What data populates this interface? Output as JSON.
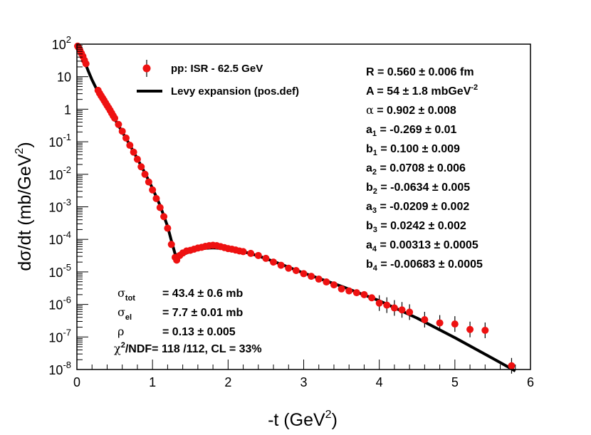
{
  "chart_data": {
    "type": "scatter",
    "xlabel": "-t (GeV",
    "xlabel_sup": "2",
    "xlabel_close": ")",
    "ylabel": "dσ/dt (mb/GeV",
    "ylabel_sup": "2",
    "ylabel_close": ")",
    "xlim": [
      0,
      6
    ],
    "ylim_log10": [
      -8,
      2
    ],
    "x_ticks": [
      "0",
      "1",
      "2",
      "3",
      "4",
      "5",
      "6"
    ],
    "y_ticks": [
      {
        "base": "10",
        "exp": "-8"
      },
      {
        "base": "10",
        "exp": "-7"
      },
      {
        "base": "10",
        "exp": "-6"
      },
      {
        "base": "10",
        "exp": "-5"
      },
      {
        "base": "10",
        "exp": "-4"
      },
      {
        "base": "10",
        "exp": "-3"
      },
      {
        "base": "10",
        "exp": "-2"
      },
      {
        "base": "10",
        "exp": "-1"
      },
      {
        "base": "1",
        "exp": ""
      },
      {
        "base": "10",
        "exp": ""
      },
      {
        "base": "10",
        "exp": "2"
      }
    ],
    "legend": {
      "data_label": "pp: ISR - 62.5 GeV",
      "fit_label": "Levy expansion (pos.def)"
    },
    "data_color": "#ee1111",
    "fit_color": "#000000",
    "series": [
      {
        "name": "pp: ISR - 62.5 GeV",
        "points": [
          [
            0.01,
            87
          ],
          [
            0.02,
            80
          ],
          [
            0.04,
            65
          ],
          [
            0.06,
            52
          ],
          [
            0.08,
            42
          ],
          [
            0.1,
            32
          ],
          [
            0.12,
            25
          ],
          [
            0.28,
            3.8
          ],
          [
            0.3,
            3.1
          ],
          [
            0.32,
            2.6
          ],
          [
            0.34,
            2.2
          ],
          [
            0.36,
            1.85
          ],
          [
            0.38,
            1.55
          ],
          [
            0.4,
            1.3
          ],
          [
            0.42,
            1.1
          ],
          [
            0.44,
            0.92
          ],
          [
            0.46,
            0.76
          ],
          [
            0.48,
            0.63
          ],
          [
            0.5,
            0.53
          ],
          [
            0.55,
            0.34
          ],
          [
            0.6,
            0.21
          ],
          [
            0.65,
            0.13
          ],
          [
            0.7,
            0.078
          ],
          [
            0.75,
            0.048
          ],
          [
            0.8,
            0.029
          ],
          [
            0.85,
            0.017
          ],
          [
            0.9,
            0.01
          ],
          [
            0.95,
            0.0058
          ],
          [
            1.0,
            0.0033
          ],
          [
            1.05,
            0.0018
          ],
          [
            1.1,
            0.00095
          ],
          [
            1.15,
            0.0005
          ],
          [
            1.2,
            0.00022
          ],
          [
            1.25,
            7e-05
          ],
          [
            1.3,
            2.8e-05
          ],
          [
            1.32,
            2.3e-05
          ],
          [
            1.36,
            3.2e-05
          ],
          [
            1.4,
            3.8e-05
          ],
          [
            1.45,
            4.4e-05
          ],
          [
            1.5,
            4.6e-05
          ],
          [
            1.55,
            5e-05
          ],
          [
            1.6,
            5.4e-05
          ],
          [
            1.65,
            5.7e-05
          ],
          [
            1.7,
            6.1e-05
          ],
          [
            1.75,
            6.4e-05
          ],
          [
            1.8,
            6.6e-05
          ],
          [
            1.85,
            6.4e-05
          ],
          [
            1.9,
            6e-05
          ],
          [
            1.95,
            5.6e-05
          ],
          [
            2.0,
            5.2e-05
          ],
          [
            2.05,
            5e-05
          ],
          [
            2.1,
            4.7e-05
          ],
          [
            2.15,
            4.4e-05
          ],
          [
            2.2,
            4.2e-05
          ],
          [
            2.3,
            3.7e-05
          ],
          [
            2.4,
            3.2e-05
          ],
          [
            2.5,
            2.6e-05
          ],
          [
            2.6,
            2e-05
          ],
          [
            2.7,
            1.6e-05
          ],
          [
            2.8,
            1.3e-05
          ],
          [
            2.9,
            1.1e-05
          ],
          [
            3.0,
            8.8e-06
          ],
          [
            3.1,
            7.3e-06
          ],
          [
            3.2,
            6e-06
          ],
          [
            3.3,
            4.9e-06
          ],
          [
            3.4,
            4e-06
          ],
          [
            3.5,
            3e-06
          ],
          [
            3.6,
            2.6e-06
          ],
          [
            3.7,
            2.3e-06
          ],
          [
            3.8,
            2e-06
          ],
          [
            3.9,
            1.6e-06
          ],
          [
            4.0,
            1.1e-06
          ],
          [
            4.1,
            9.5e-07
          ],
          [
            4.2,
            7.8e-07
          ],
          [
            4.3,
            6.8e-07
          ],
          [
            4.4,
            5.8e-07
          ],
          [
            4.6,
            3.4e-07
          ],
          [
            4.8,
            2.7e-07
          ],
          [
            5.0,
            2.5e-07
          ],
          [
            5.2,
            1.7e-07
          ],
          [
            5.4,
            1.6e-07
          ],
          [
            5.75,
            1.3e-08
          ]
        ]
      }
    ],
    "fit_curve": {
      "name": "Levy expansion (pos.def)",
      "x": [
        0.0,
        0.05,
        0.1,
        0.15,
        0.2,
        0.3,
        0.4,
        0.5,
        0.6,
        0.7,
        0.8,
        0.9,
        1.0,
        1.1,
        1.2,
        1.25,
        1.3,
        1.35,
        1.4,
        1.5,
        1.6,
        1.7,
        1.8,
        1.9,
        2.0,
        2.2,
        2.4,
        2.6,
        2.8,
        3.0,
        3.5,
        4.0,
        4.5,
        5.0,
        5.5,
        5.8
      ],
      "y": [
        90,
        55,
        30,
        15,
        8,
        2.7,
        1.2,
        0.5,
        0.2,
        0.08,
        0.03,
        0.011,
        0.0037,
        0.0011,
        0.00025,
        9e-05,
        3.5e-05,
        3e-05,
        3.4e-05,
        4.2e-05,
        4.9e-05,
        5.3e-05,
        5.5e-05,
        5.3e-05,
        5e-05,
        4.2e-05,
        3.1e-05,
        2.1e-05,
        1.4e-05,
        9.2e-06,
        3.6e-06,
        1.3e-06,
        3.8e-07,
        9.5e-08,
        2.2e-08,
        9e-09
      ]
    },
    "parameters": [
      {
        "name": "R",
        "sub": "",
        "sup": "",
        "value": " = 0.560",
        "err": "± 0.006 fm"
      },
      {
        "name": "A",
        "sub": "",
        "sup": "",
        "value": " = 54",
        "err": "± 1.8 mbGeV",
        "err_sup": "-2"
      },
      {
        "name": "α",
        "sub": "",
        "sup": "",
        "value": " = 0.902",
        "err": "± 0.008"
      },
      {
        "name": "a",
        "sub": "1",
        "sup": "",
        "value": " = -0.269",
        "err": "± 0.01"
      },
      {
        "name": "b",
        "sub": "1",
        "sup": "",
        "value": " = 0.100",
        "err": "± 0.009"
      },
      {
        "name": "a",
        "sub": "2",
        "sup": "",
        "value": " = 0.0708",
        "err": "± 0.006"
      },
      {
        "name": "b",
        "sub": "2",
        "sup": "",
        "value": " = -0.0634",
        "err": "± 0.005"
      },
      {
        "name": "a",
        "sub": "3",
        "sup": "",
        "value": " = -0.0209",
        "err": "± 0.002"
      },
      {
        "name": "b",
        "sub": "3",
        "sup": "",
        "value": " = 0.0242",
        "err": "± 0.002"
      },
      {
        "name": "a",
        "sub": "4",
        "sup": "",
        "value": " = 0.00313",
        "err": "± 0.0005"
      },
      {
        "name": "b",
        "sub": "4",
        "sup": "",
        "value": " = -0.00683",
        "err": "± 0.0005"
      }
    ],
    "stats": [
      {
        "name": "σ",
        "sub": "tot",
        "value": "= 43.4",
        "err": "± 0.6 mb"
      },
      {
        "name": "σ",
        "sub": "el",
        "value": "= 7.7",
        "err": "± 0.01 mb"
      },
      {
        "name": "ρ",
        "sub": "",
        "value": "= 0.13",
        "err": "± 0.005"
      }
    ],
    "chi2": {
      "prefix": "χ",
      "sup": "2",
      "rest": "/NDF",
      "value": "= 118 /112,  CL = 33%"
    }
  }
}
